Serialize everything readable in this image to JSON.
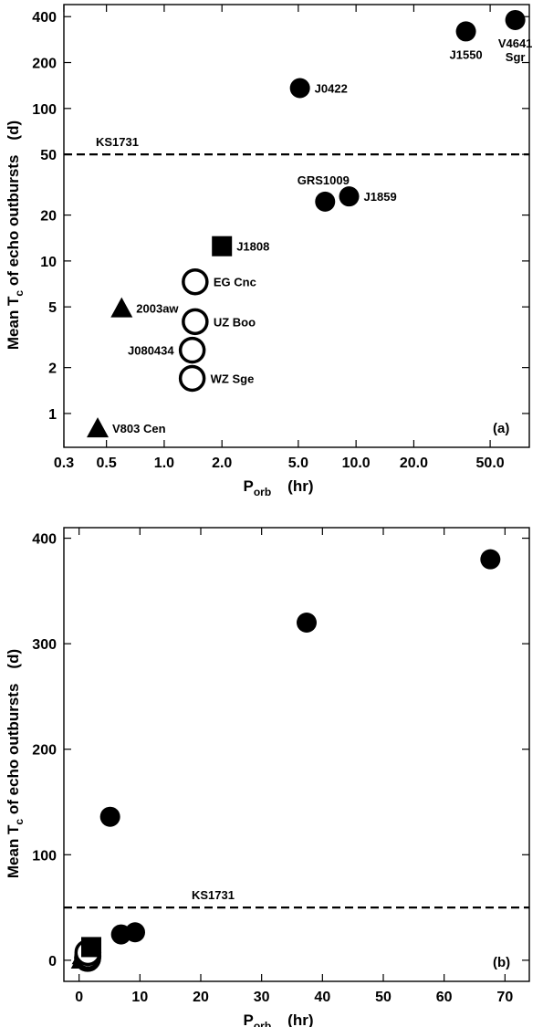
{
  "chart_data": [
    {
      "type": "scatter",
      "panel_label": "(a)",
      "x_scale": "log",
      "y_scale": "log",
      "xlim": [
        0.3,
        80
      ],
      "ylim": [
        0.6,
        480
      ],
      "x_ticks": [
        0.3,
        0.5,
        1.0,
        2.0,
        5.0,
        10.0,
        20.0,
        50.0
      ],
      "x_tick_labels": [
        "0.3",
        "0.5",
        "1.0",
        "2.0",
        "5.0",
        "10.0",
        "20.0",
        "50.0"
      ],
      "y_ticks": [
        1,
        2,
        5,
        10,
        20,
        50,
        100,
        200,
        400
      ],
      "y_tick_labels": [
        "1",
        "2",
        "5",
        "10",
        "20",
        "50",
        "100",
        "200",
        "400"
      ],
      "xlabel": {
        "main": "P",
        "sub": "orb",
        "unit": "(hr)"
      },
      "ylabel": {
        "pre": "Mean T",
        "sub": "c",
        "post": " of echo outbursts",
        "unit": "(d)"
      },
      "hline": {
        "y": 50,
        "label": "KS1731",
        "style": "dashed"
      },
      "grid": false,
      "points": [
        {
          "x": 0.45,
          "y": 0.8,
          "marker": "triangle",
          "label": "V803 Cen",
          "label_pos": "right"
        },
        {
          "x": 0.6,
          "y": 4.9,
          "marker": "triangle",
          "label": "2003aw",
          "label_pos": "right"
        },
        {
          "x": 1.4,
          "y": 1.7,
          "marker": "open-circle",
          "label": "WZ Sge",
          "label_pos": "right"
        },
        {
          "x": 1.4,
          "y": 2.6,
          "marker": "open-circle",
          "label": "J080434",
          "label_pos": "left"
        },
        {
          "x": 1.45,
          "y": 4.0,
          "marker": "open-circle",
          "label": "UZ Boo",
          "label_pos": "right"
        },
        {
          "x": 1.45,
          "y": 7.3,
          "marker": "open-circle",
          "label": "EG Cnc",
          "label_pos": "right"
        },
        {
          "x": 2.0,
          "y": 12.5,
          "marker": "square",
          "label": "J1808",
          "label_pos": "right"
        },
        {
          "x": 5.1,
          "y": 136,
          "marker": "filled-circle",
          "label": "J0422",
          "label_pos": "right"
        },
        {
          "x": 6.9,
          "y": 24.5,
          "marker": "filled-circle",
          "label": "GRS1009",
          "label_pos": "above"
        },
        {
          "x": 9.2,
          "y": 26.5,
          "marker": "filled-circle",
          "label": "J1859",
          "label_pos": "right"
        },
        {
          "x": 37.4,
          "y": 320,
          "marker": "filled-circle",
          "label": "J1550",
          "label_pos": "below"
        },
        {
          "x": 67.6,
          "y": 380,
          "marker": "filled-circle",
          "label": "V4641 Sgr",
          "label_pos": "below"
        }
      ]
    },
    {
      "type": "scatter",
      "panel_label": "(b)",
      "x_scale": "linear",
      "y_scale": "linear",
      "xlim": [
        -2.5,
        74
      ],
      "ylim": [
        -20,
        410
      ],
      "x_ticks": [
        0,
        10,
        20,
        30,
        40,
        50,
        60,
        70
      ],
      "x_tick_labels": [
        "0",
        "10",
        "20",
        "30",
        "40",
        "50",
        "60",
        "70"
      ],
      "y_ticks": [
        0,
        100,
        200,
        300,
        400
      ],
      "y_tick_labels": [
        "0",
        "100",
        "200",
        "300",
        "400"
      ],
      "xlabel": {
        "main": "P",
        "sub": "orb",
        "unit": "(hr)"
      },
      "ylabel": {
        "pre": "Mean T",
        "sub": "c",
        "post": " of echo outbursts",
        "unit": "(d)"
      },
      "hline": {
        "y": 50,
        "label": "KS1731",
        "style": "dashed"
      },
      "grid": false,
      "points": [
        {
          "x": 0.45,
          "y": 0.8,
          "marker": "triangle"
        },
        {
          "x": 0.6,
          "y": 4.9,
          "marker": "triangle"
        },
        {
          "x": 1.4,
          "y": 1.7,
          "marker": "open-circle"
        },
        {
          "x": 1.4,
          "y": 2.6,
          "marker": "open-circle"
        },
        {
          "x": 1.45,
          "y": 4.0,
          "marker": "open-circle"
        },
        {
          "x": 1.45,
          "y": 7.3,
          "marker": "open-circle"
        },
        {
          "x": 2.0,
          "y": 12.5,
          "marker": "square"
        },
        {
          "x": 5.1,
          "y": 136,
          "marker": "filled-circle"
        },
        {
          "x": 6.9,
          "y": 24.5,
          "marker": "filled-circle"
        },
        {
          "x": 9.2,
          "y": 26.5,
          "marker": "filled-circle"
        },
        {
          "x": 37.4,
          "y": 320,
          "marker": "filled-circle"
        },
        {
          "x": 67.6,
          "y": 380,
          "marker": "filled-circle"
        }
      ]
    }
  ]
}
